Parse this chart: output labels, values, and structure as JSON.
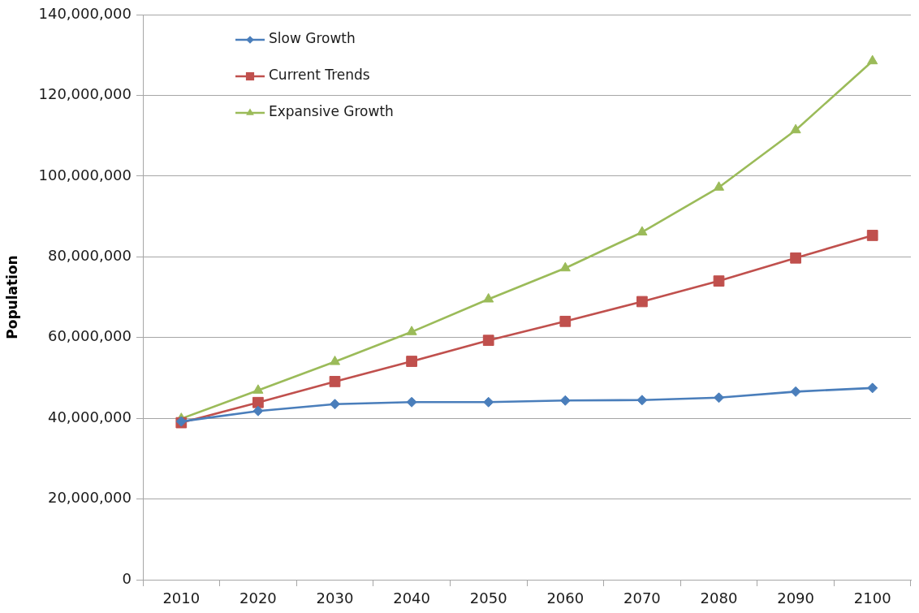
{
  "chart_data": {
    "type": "line",
    "ylabel": "Population",
    "categories": [
      "2010",
      "2020",
      "2030",
      "2040",
      "2050",
      "2060",
      "2070",
      "2080",
      "2090",
      "2100"
    ],
    "series": [
      {
        "name": "Slow Growth",
        "color": "#4a7ebb",
        "marker": "diamond",
        "values": [
          39200000,
          41800000,
          43500000,
          44000000,
          44000000,
          44400000,
          44500000,
          45100000,
          46600000,
          47500000
        ]
      },
      {
        "name": "Current Trends",
        "color": "#c0504d",
        "marker": "square",
        "values": [
          38900000,
          43900000,
          49100000,
          54100000,
          59300000,
          64000000,
          68900000,
          74000000,
          79700000,
          85300000
        ]
      },
      {
        "name": "Expansive Growth",
        "color": "#9bbb59",
        "marker": "triangle",
        "values": [
          39900000,
          46900000,
          54000000,
          61400000,
          69500000,
          77200000,
          86100000,
          97200000,
          111400000,
          128500000
        ]
      }
    ],
    "ylim": [
      0,
      140000000
    ],
    "yticks": [
      0,
      {
        "value": 20000000,
        "label": "20,000,000"
      },
      {
        "value": 40000000,
        "label": "40,000,000"
      },
      {
        "value": 60000000,
        "label": "60,000,000"
      },
      {
        "value": 80000000,
        "label": "80,000,000"
      },
      {
        "value": 100000000,
        "label": "100,000,000"
      },
      {
        "value": 120000000,
        "label": "120,000,000"
      },
      {
        "value": 140000000,
        "label": "140,000,000"
      }
    ],
    "grid": "y",
    "legend": "top left"
  }
}
